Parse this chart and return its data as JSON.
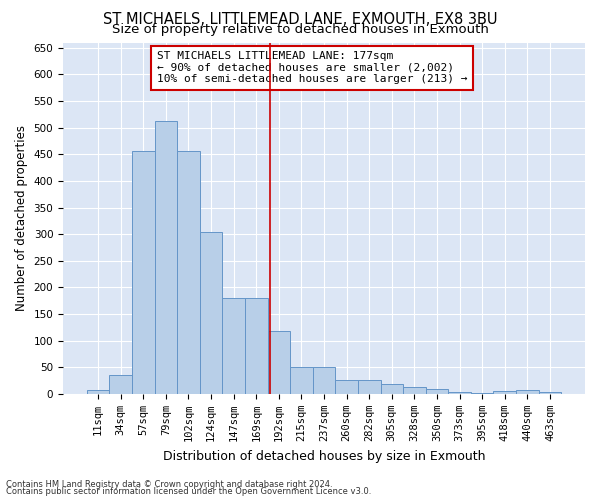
{
  "title1": "ST MICHAELS, LITTLEMEAD LANE, EXMOUTH, EX8 3BU",
  "title2": "Size of property relative to detached houses in Exmouth",
  "xlabel": "Distribution of detached houses by size in Exmouth",
  "ylabel": "Number of detached properties",
  "categories": [
    "11sqm",
    "34sqm",
    "57sqm",
    "79sqm",
    "102sqm",
    "124sqm",
    "147sqm",
    "169sqm",
    "192sqm",
    "215sqm",
    "237sqm",
    "260sqm",
    "282sqm",
    "305sqm",
    "328sqm",
    "350sqm",
    "373sqm",
    "395sqm",
    "418sqm",
    "440sqm",
    "463sqm"
  ],
  "values": [
    7,
    35,
    457,
    512,
    457,
    305,
    180,
    180,
    118,
    50,
    50,
    27,
    27,
    18,
    13,
    9,
    4,
    1,
    6,
    7,
    4
  ],
  "bar_color": "#b8cfe8",
  "bar_edge_color": "#6495c8",
  "vline_x_index": 7.63,
  "vline_color": "#cc0000",
  "annotation_text": "ST MICHAELS LITTLEMEAD LANE: 177sqm\n← 90% of detached houses are smaller (2,002)\n10% of semi-detached houses are larger (213) →",
  "annotation_box_color": "white",
  "annotation_box_edge": "#cc0000",
  "ylim": [
    0,
    660
  ],
  "yticks": [
    0,
    50,
    100,
    150,
    200,
    250,
    300,
    350,
    400,
    450,
    500,
    550,
    600,
    650
  ],
  "bg_color": "#dce6f5",
  "grid_color": "white",
  "footnote1": "Contains HM Land Registry data © Crown copyright and database right 2024.",
  "footnote2": "Contains public sector information licensed under the Open Government Licence v3.0.",
  "title1_fontsize": 10.5,
  "title2_fontsize": 9.5,
  "xlabel_fontsize": 9,
  "ylabel_fontsize": 8.5,
  "tick_fontsize": 7.5,
  "annot_fontsize": 8,
  "footnote_fontsize": 6
}
